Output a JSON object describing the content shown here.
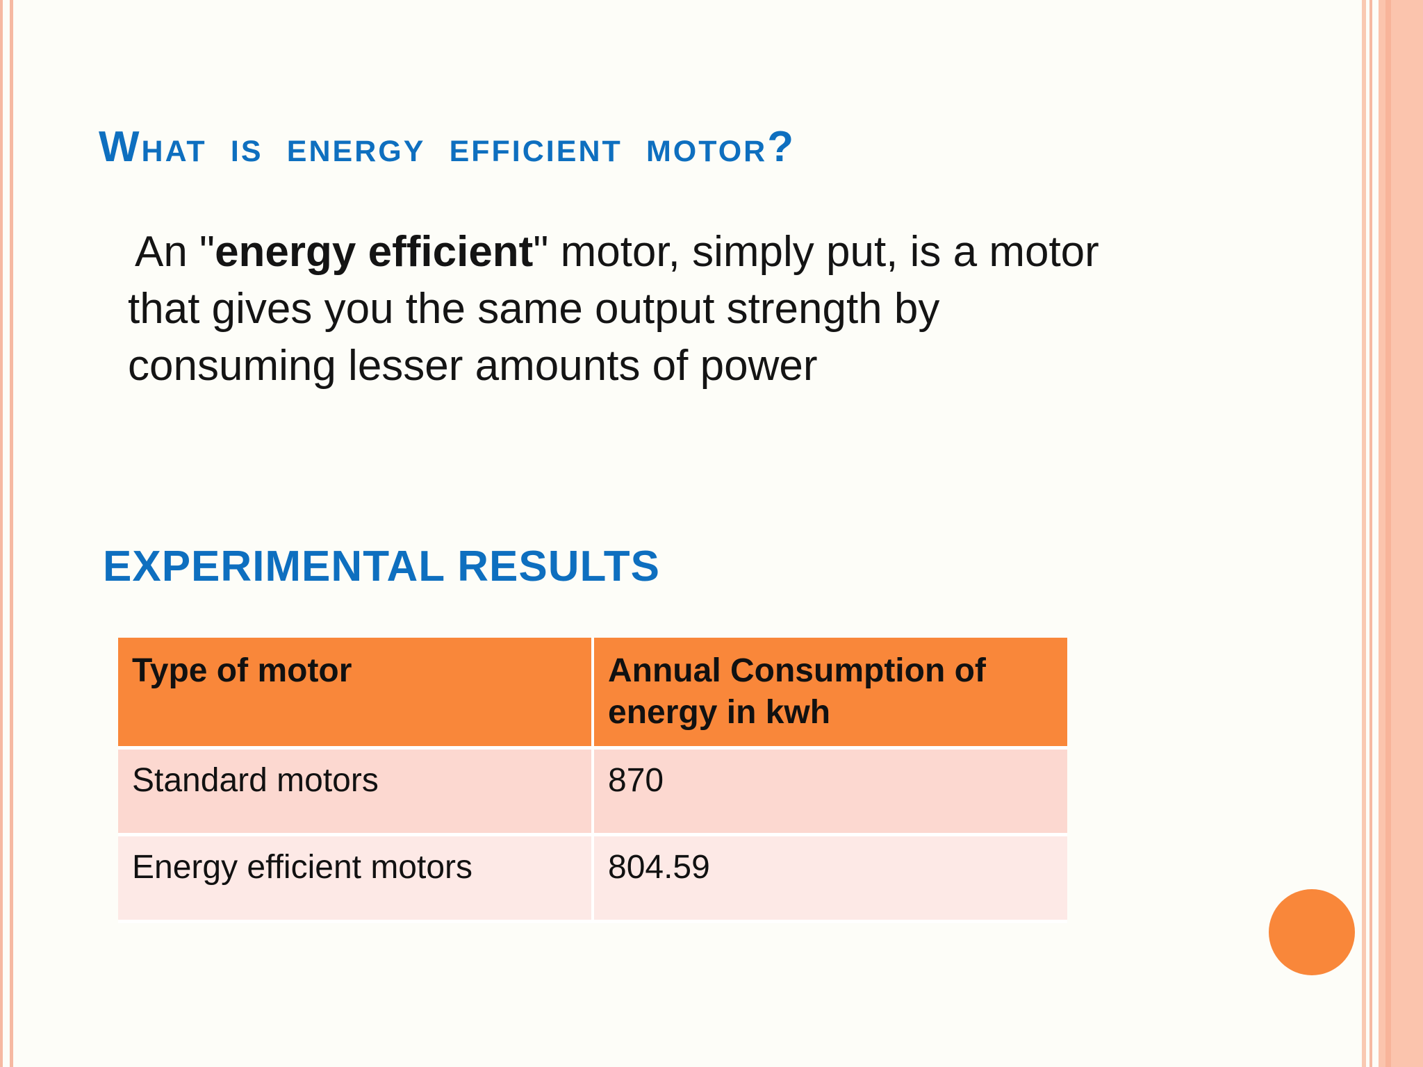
{
  "slide": {
    "title": "What is energy efficient motor?",
    "body": {
      "prefix": "An \"",
      "bold": "energy efficient",
      "suffix": "\" motor, simply put, is a motor",
      "line2": "that gives you the same output strength by",
      "line3": "consuming lesser amounts of power"
    },
    "subtitle": "EXPERIMENTAL RESULTS",
    "table": {
      "headers": [
        "Type of motor",
        "Annual Consumption of energy in kwh"
      ],
      "rows": [
        [
          "Standard motors",
          "870"
        ],
        [
          "Energy efficient motors",
          "804.59"
        ]
      ]
    }
  },
  "colors": {
    "heading": "#0e6fbf",
    "table_header": "#f9873a",
    "row_1": "#fcd8d0",
    "row_2": "#fde9e6",
    "border_accent": "#f6b9a2",
    "circle": "#f9873a"
  }
}
